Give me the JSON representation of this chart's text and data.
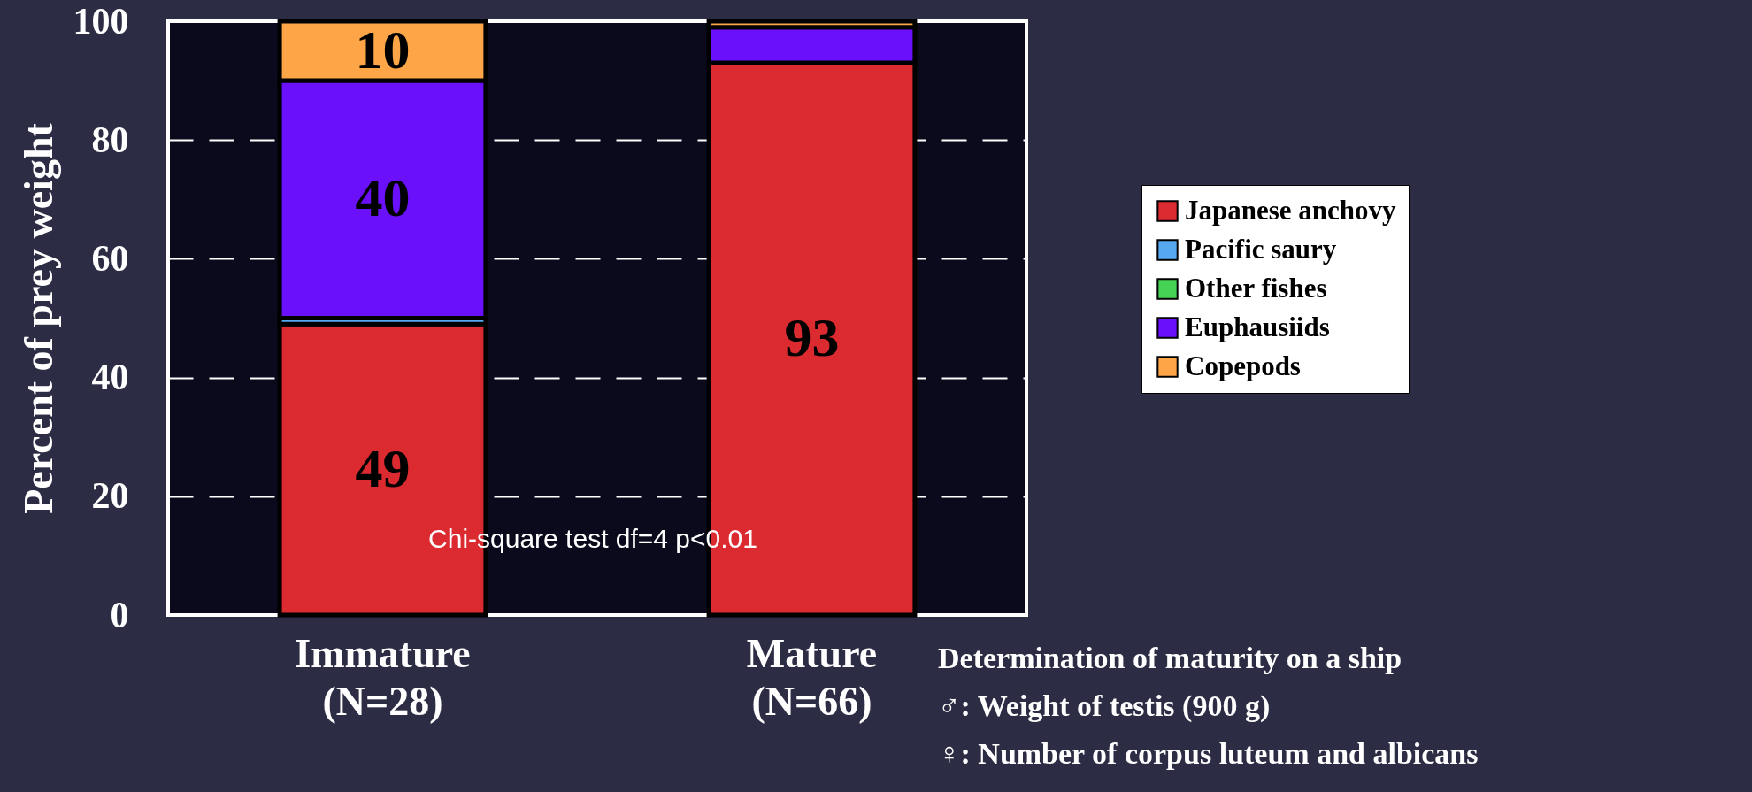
{
  "chart_data": {
    "type": "bar",
    "stacked": true,
    "ylabel": "Percent of prey weight",
    "categories": [
      "Immature\n(N=28)",
      "Mature\n(N=66)"
    ],
    "ylim": [
      0,
      100
    ],
    "yticks": [
      0,
      20,
      40,
      60,
      80,
      100
    ],
    "grid": "y",
    "legend": "right",
    "series": [
      {
        "name": "Japanese anchovy",
        "color": "#dc2b30",
        "values": [
          49,
          93
        ],
        "value_labels": [
          "49",
          "93"
        ]
      },
      {
        "name": "Pacific saury",
        "color": "#56a8f0",
        "values": [
          1,
          0
        ],
        "value_labels": [
          null,
          null
        ]
      },
      {
        "name": "Other fishes",
        "color": "#46d255",
        "values": [
          0,
          0
        ],
        "value_labels": [
          null,
          null
        ]
      },
      {
        "name": "Euphausiids",
        "color": "#6a10fb",
        "values": [
          40,
          6
        ],
        "value_labels": [
          "40",
          null
        ]
      },
      {
        "name": "Copepods",
        "color": "#fea647",
        "values": [
          10,
          1
        ],
        "value_labels": [
          "10",
          null
        ]
      }
    ],
    "annotations": [
      "Chi-square test df=4 p<0.01",
      "Determination of maturity on a ship",
      "♂: Weight of testis (900 g)",
      "♀: Number of corpus luteum and albicans"
    ]
  }
}
